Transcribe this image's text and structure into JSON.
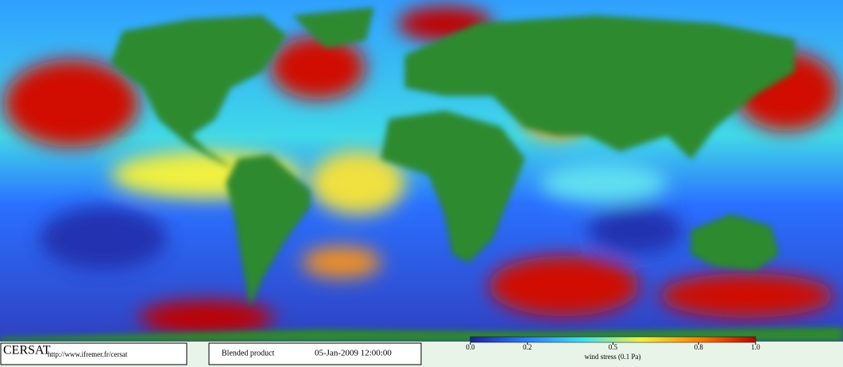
{
  "footer": {
    "logo": "CERSAT",
    "url": "http://www.ifremer.fr/cersat",
    "product": "Blended product",
    "date": "05-Jan-2009 12:00:00"
  },
  "colorbar": {
    "label": "wind stress (0.1 Pa)",
    "lim": [
      0,
      1
    ],
    "ticks": [
      {
        "value": 0,
        "label": "0.0"
      },
      {
        "value": 0.2,
        "label": "0.2"
      },
      {
        "value": 0.5,
        "label": "0.5"
      },
      {
        "value": 0.8,
        "label": "0.8"
      },
      {
        "value": 1,
        "label": "1.0"
      }
    ],
    "colors": [
      "#2020a0",
      "#2a7fff",
      "#40e0f0",
      "#f0f040",
      "#ff8000",
      "#c00000"
    ]
  }
}
